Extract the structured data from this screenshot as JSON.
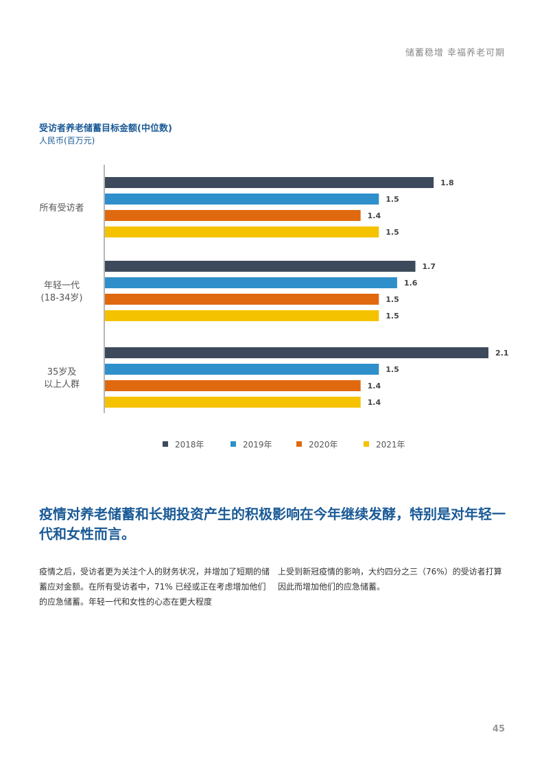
{
  "header": {
    "running_title": "储蓄稳增 幸福养老可期"
  },
  "chart_data": {
    "type": "bar",
    "orientation": "horizontal",
    "title": "受访者养老储蓄目标金额(中位数)",
    "unit_label": "人民币(百万元)",
    "groups": [
      {
        "label_lines": [
          "所有受访者"
        ]
      },
      {
        "label_lines": [
          "年轻一代",
          "(18-34岁)"
        ]
      },
      {
        "label_lines": [
          "35岁及",
          "以上人群"
        ]
      }
    ],
    "series": [
      {
        "name": "2018年",
        "color": "#3c4a5b",
        "values": [
          1.8,
          1.7,
          2.1
        ]
      },
      {
        "name": "2019年",
        "color": "#2e8fcb",
        "values": [
          1.5,
          1.6,
          1.5
        ]
      },
      {
        "name": "2020年",
        "color": "#e0690f",
        "values": [
          1.4,
          1.5,
          1.4
        ]
      },
      {
        "name": "2021年",
        "color": "#f5c200",
        "values": [
          1.5,
          1.5,
          1.4
        ]
      }
    ],
    "xlim": [
      0,
      2.1
    ],
    "legend_position": "bottom"
  },
  "article": {
    "headline": "疫情对养老储蓄和长期投资产生的积极影响在今年继续发酵，特别是对年轻一代和女性而言。",
    "body_left": "疫情之后，受访者更为关注个人的财务状况，并增加了短期的储蓄应对金额。在所有受访者中，71% 已经或正在考虑增加他们的应急储蓄。年轻一代和女性的心态在更大程度",
    "body_right": "上受到新冠疫情的影响，大约四分之三（76%）的受访者打算因此而增加他们的应急储蓄。"
  },
  "footer": {
    "page_number": "45"
  }
}
